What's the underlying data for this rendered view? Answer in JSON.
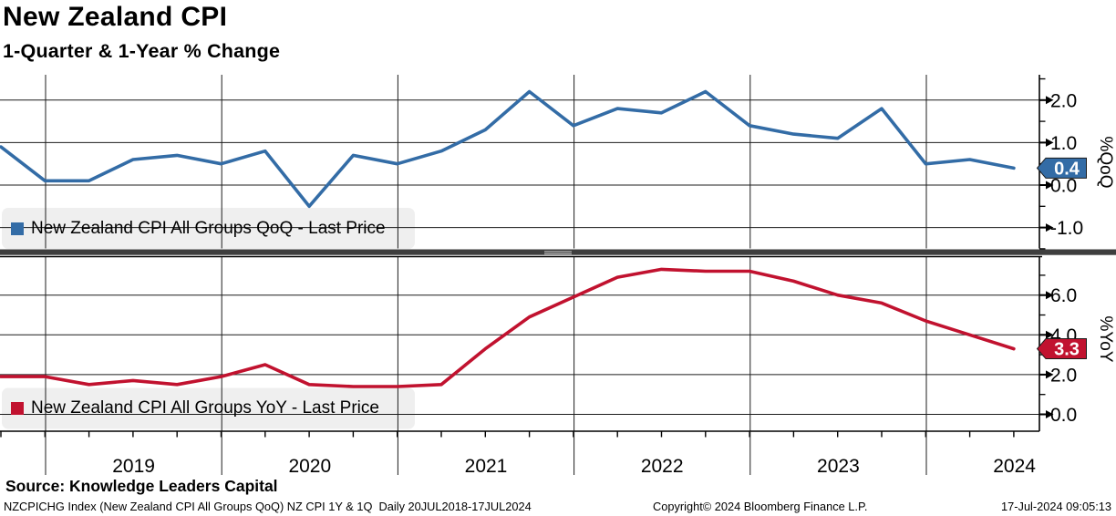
{
  "header": {
    "title": "New Zealand CPI",
    "subtitle": "1-Quarter & 1-Year % Change"
  },
  "chart_data": {
    "type": "line",
    "title": "New Zealand CPI",
    "subtitle": "1-Quarter & 1-Year % Change",
    "x_quarters": [
      "2018Q3",
      "2018Q4",
      "2019Q1",
      "2019Q2",
      "2019Q3",
      "2019Q4",
      "2020Q1",
      "2020Q2",
      "2020Q3",
      "2020Q4",
      "2021Q1",
      "2021Q2",
      "2021Q3",
      "2021Q4",
      "2022Q1",
      "2022Q2",
      "2022Q3",
      "2022Q4",
      "2023Q1",
      "2023Q2",
      "2023Q3",
      "2023Q4",
      "2024Q1",
      "2024Q2"
    ],
    "year_labels": [
      "2019",
      "2020",
      "2021",
      "2022",
      "2023",
      "2024"
    ],
    "x_range_label": "20JUL2018-17JUL2024",
    "grid": true,
    "legend_position": "top-left-inside",
    "panels": [
      {
        "name": "qoq",
        "legend": "New Zealand CPI All Groups QoQ - Last Price",
        "axis_title": "%QoQ",
        "color": "#336CA6",
        "last_price": "0.4",
        "ylim": [
          -1.5,
          2.6
        ],
        "yticks_major": [
          2.0,
          1.0,
          0.0,
          -1.0
        ],
        "yticks_minor": [
          2.5,
          1.5,
          0.5,
          -0.5,
          -1.5
        ],
        "values": [
          0.9,
          0.1,
          0.1,
          0.6,
          0.7,
          0.5,
          0.8,
          -0.5,
          0.7,
          0.5,
          0.8,
          1.3,
          2.2,
          1.4,
          1.8,
          1.7,
          2.2,
          1.4,
          1.2,
          1.1,
          1.8,
          0.5,
          0.6,
          0.4
        ]
      },
      {
        "name": "yoy",
        "legend": "New Zealand CPI All Groups YoY - Last Price",
        "axis_title": "%YoY",
        "color": "#C1122F",
        "last_price": "3.3",
        "ylim": [
          -0.9,
          7.9
        ],
        "yticks_major": [
          6.0,
          4.0,
          2.0,
          0.0
        ],
        "yticks_minor": [
          7.0,
          5.0,
          3.0,
          1.0
        ],
        "values": [
          1.9,
          1.9,
          1.5,
          1.7,
          1.5,
          1.9,
          2.5,
          1.5,
          1.4,
          1.4,
          1.5,
          3.3,
          4.9,
          5.9,
          6.9,
          7.3,
          7.2,
          7.2,
          6.7,
          6.0,
          5.6,
          4.7,
          4.0,
          3.3
        ]
      }
    ]
  },
  "footer": {
    "source": "Source: Knowledge Leaders Capital",
    "info_left": "NZCPICHG Index (New Zealand CPI All Groups QoQ) NZ CPI 1Y & 1Q  Daily 20JUL2018-17JUL2024",
    "copyright": "Copyright© 2024 Bloomberg Finance L.P.",
    "timestamp": "17-Jul-2024 09:05:13"
  }
}
